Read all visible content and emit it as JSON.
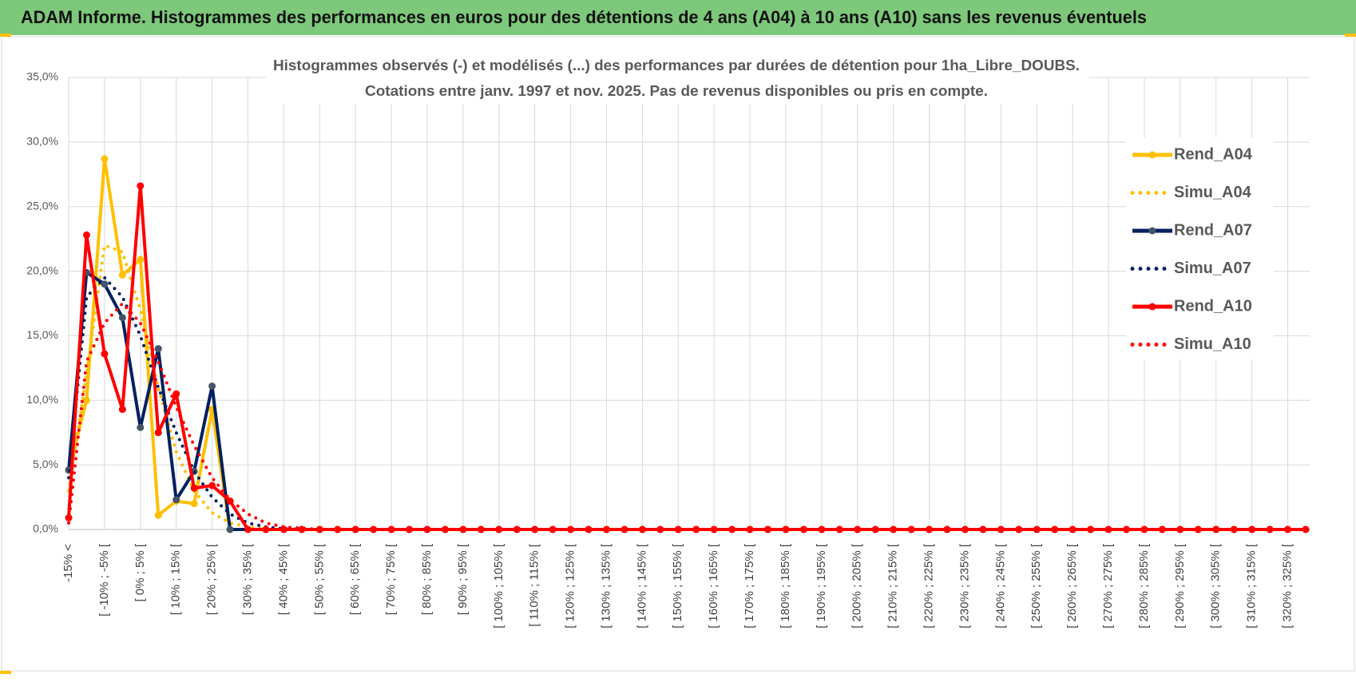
{
  "header": {
    "title": "ADAM Informe. Histogrammes des performances en euros pour des détentions de 4 ans (A04) à 10 ans (A10) sans les revenus éventuels"
  },
  "chart_data": {
    "type": "line",
    "title": "Histogrammes observés (-) et modélisés (...) des performances par durées de détention pour 1ha_Libre_DOUBS.",
    "subtitle": "Cotations entre janv. 1997 et nov. 2025. Pas de revenus disponibles ou pris en compte.",
    "categories": [
      "-15% <",
      null,
      "[ -10% ; -5% [",
      null,
      "[ 0% ; 5% [",
      null,
      "[ 10% ; 15% [",
      null,
      "[ 20% ; 25% [",
      null,
      "[ 30% ; 35% [",
      null,
      "[ 40% ; 45% [",
      null,
      "[ 50% ; 55% [",
      null,
      "[ 60% ; 65% [",
      null,
      "[ 70% ; 75% [",
      null,
      "[ 80% ; 85% [",
      null,
      "[ 90% ; 95% [",
      null,
      "[ 100% ; 105% [",
      null,
      "[ 110% ; 115% [",
      null,
      "[ 120% ; 125% [",
      null,
      "[ 130% ; 135% [",
      null,
      "[ 140% ; 145% [",
      null,
      "[ 150% ; 155% [",
      null,
      "[ 160% ; 165% [",
      null,
      "[ 170% ; 175% [",
      null,
      "[ 180% ; 185% [",
      null,
      "[ 190% ; 195% [",
      null,
      "[ 200% ; 205% [",
      null,
      "[ 210% ; 215% [",
      null,
      "[ 220% ; 225% [",
      null,
      "[ 230% ; 235% [",
      null,
      "[ 240% ; 245% [",
      null,
      "[ 250% ; 255% [",
      null,
      "[ 260% ; 265% [",
      null,
      "[ 270% ; 275% [",
      null,
      "[ 280% ; 285% [",
      null,
      "[ 290% ; 295% [",
      null,
      "[ 300% ; 305% [",
      null,
      "[ 310% ; 315% [",
      null,
      "[ 320% ; 325% [",
      null
    ],
    "series": [
      {
        "name": "Rend_A04",
        "color": "#ffc000",
        "style": "solid",
        "markers": true,
        "values": [
          4.6,
          10,
          28.7,
          19.7,
          20.9,
          1.1,
          2.2,
          2.0,
          9.3,
          0,
          0,
          0,
          0,
          0,
          0,
          0,
          0,
          0,
          0,
          0,
          0,
          0,
          0,
          0,
          0,
          0,
          0,
          0,
          0,
          0,
          0,
          0,
          0,
          0,
          0,
          0,
          0,
          0,
          0,
          0,
          0,
          0,
          0,
          0,
          0,
          0,
          0,
          0,
          0,
          0,
          0,
          0,
          0,
          0,
          0,
          0,
          0,
          0,
          0,
          0,
          0,
          0,
          0,
          0,
          0,
          0,
          0,
          0,
          0,
          0
        ]
      },
      {
        "name": "Simu_A04",
        "color": "#ffc000",
        "style": "dotted",
        "markers": false,
        "values": [
          3,
          12,
          22,
          21.5,
          17,
          11,
          6,
          3,
          1.3,
          0.5,
          0.2,
          0.05,
          0,
          0,
          0,
          0,
          0,
          0,
          0,
          0,
          0,
          0,
          0,
          0,
          0,
          0,
          0,
          0,
          0,
          0,
          0,
          0,
          0,
          0,
          0,
          0,
          0,
          0,
          0,
          0,
          0,
          0,
          0,
          0,
          0,
          0,
          0,
          0,
          0,
          0,
          0,
          0,
          0,
          0,
          0,
          0,
          0,
          0,
          0,
          0,
          0,
          0,
          0,
          0,
          0,
          0,
          0,
          0,
          0,
          0
        ]
      },
      {
        "name": "Rend_A07",
        "color": "#002060",
        "style": "solid",
        "markers": true,
        "values": [
          4.6,
          19.9,
          19,
          16.4,
          7.9,
          14,
          2.3,
          4.5,
          11.1,
          0,
          0,
          0,
          0,
          0,
          0,
          0,
          0,
          0,
          0,
          0,
          0,
          0,
          0,
          0,
          0,
          0,
          0,
          0,
          0,
          0,
          0,
          0,
          0,
          0,
          0,
          0,
          0,
          0,
          0,
          0,
          0,
          0,
          0,
          0,
          0,
          0,
          0,
          0,
          0,
          0,
          0,
          0,
          0,
          0,
          0,
          0,
          0,
          0,
          0,
          0,
          0,
          0,
          0,
          0,
          0,
          0,
          0,
          0,
          0,
          0
        ]
      },
      {
        "name": "Simu_A07",
        "color": "#002060",
        "style": "dotted",
        "markers": false,
        "values": [
          4,
          18,
          19.5,
          18,
          15,
          11,
          7.5,
          4.5,
          2.5,
          1.2,
          0.5,
          0.2,
          0.05,
          0,
          0,
          0,
          0,
          0,
          0,
          0,
          0,
          0,
          0,
          0,
          0,
          0,
          0,
          0,
          0,
          0,
          0,
          0,
          0,
          0,
          0,
          0,
          0,
          0,
          0,
          0,
          0,
          0,
          0,
          0,
          0,
          0,
          0,
          0,
          0,
          0,
          0,
          0,
          0,
          0,
          0,
          0,
          0,
          0,
          0,
          0,
          0,
          0,
          0,
          0,
          0,
          0,
          0,
          0,
          0,
          0
        ]
      },
      {
        "name": "Rend_A10",
        "color": "#ff0000",
        "style": "solid",
        "markers": true,
        "values": [
          0.9,
          22.8,
          13.6,
          9.3,
          26.6,
          7.5,
          10.5,
          3.2,
          3.4,
          2.2,
          0,
          0,
          0,
          0,
          0,
          0,
          0,
          0,
          0,
          0,
          0,
          0,
          0,
          0,
          0,
          0,
          0,
          0,
          0,
          0,
          0,
          0,
          0,
          0,
          0,
          0,
          0,
          0,
          0,
          0,
          0,
          0,
          0,
          0,
          0,
          0,
          0,
          0,
          0,
          0,
          0,
          0,
          0,
          0,
          0,
          0,
          0,
          0,
          0,
          0,
          0,
          0,
          0,
          0,
          0,
          0,
          0,
          0,
          0,
          0
        ]
      },
      {
        "name": "Simu_A10",
        "color": "#ff0000",
        "style": "dotted",
        "markers": false,
        "values": [
          0.5,
          13,
          16,
          17.5,
          16,
          13,
          9.5,
          6.5,
          4,
          2.3,
          1.2,
          0.5,
          0.2,
          0.1,
          0,
          0,
          0,
          0,
          0,
          0,
          0,
          0,
          0,
          0,
          0,
          0,
          0,
          0,
          0,
          0,
          0,
          0,
          0,
          0,
          0,
          0,
          0,
          0,
          0,
          0,
          0,
          0,
          0,
          0,
          0,
          0,
          0,
          0,
          0,
          0,
          0,
          0,
          0,
          0,
          0,
          0,
          0,
          0,
          0,
          0,
          0,
          0,
          0,
          0,
          0,
          0,
          0,
          0,
          0,
          0
        ]
      }
    ],
    "ylim": [
      0,
      35
    ],
    "yticks": [
      {
        "value": 0,
        "label": "0,0%"
      },
      {
        "value": 5,
        "label": "5,0%"
      },
      {
        "value": 10,
        "label": "10,0%"
      },
      {
        "value": 15,
        "label": "15,0%"
      },
      {
        "value": 20,
        "label": "20,0%"
      },
      {
        "value": 25,
        "label": "25,0%"
      },
      {
        "value": 30,
        "label": "30,0%"
      },
      {
        "value": 35,
        "label": "35,0%"
      }
    ],
    "grid": true,
    "legend": "right"
  }
}
